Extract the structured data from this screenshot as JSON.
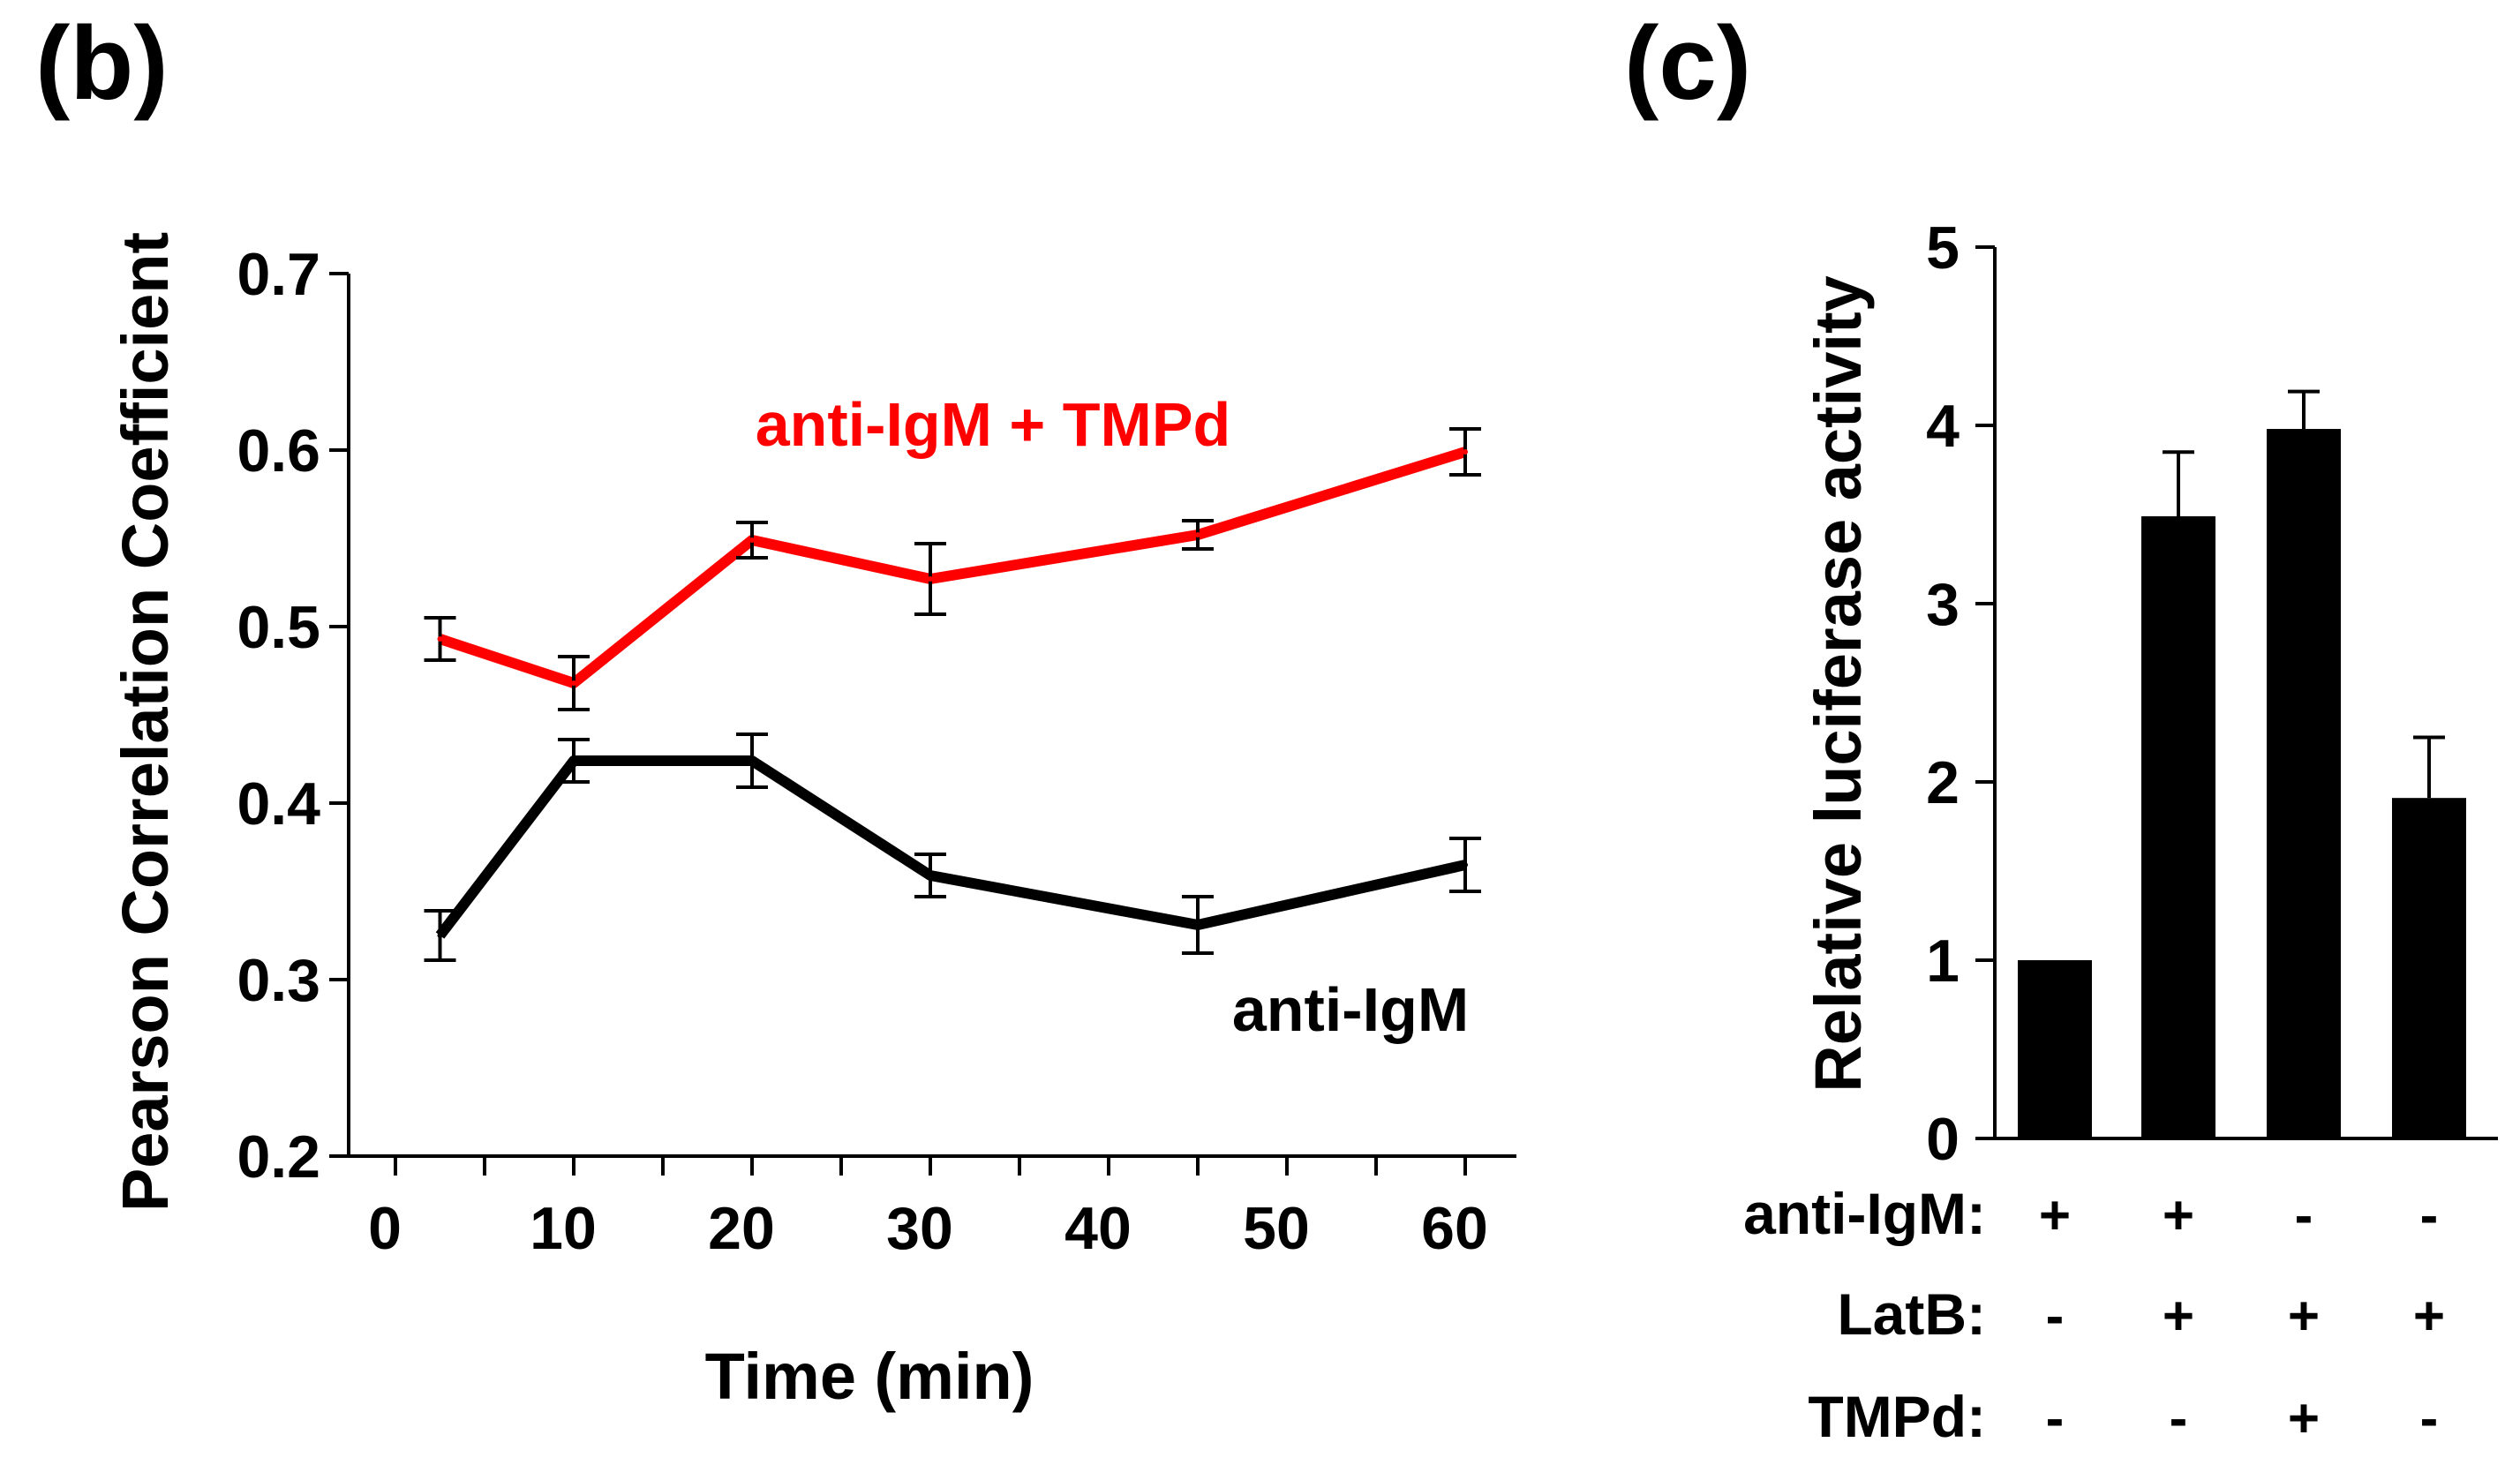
{
  "chart_data": [
    {
      "panel_label": "(b)",
      "type": "line",
      "title": "",
      "xlabel": "Time (min)",
      "ylabel": "Pearson Correlation Coefficient",
      "xlim": [
        0,
        60
      ],
      "ylim": [
        0.2,
        0.7
      ],
      "x_ticks": [
        "0",
        "10",
        "20",
        "30",
        "40",
        "50",
        "60"
      ],
      "y_ticks": [
        "0.2",
        "0.3",
        "0.4",
        "0.5",
        "0.6",
        "0.7"
      ],
      "grid": false,
      "series": [
        {
          "name": "anti-IgM + TMPd",
          "color": "#ff0000",
          "x": [
            2.5,
            10,
            20,
            30,
            45,
            60
          ],
          "y": [
            0.493,
            0.468,
            0.549,
            0.527,
            0.552,
            0.599
          ],
          "error": [
            0.012,
            0.015,
            0.01,
            0.02,
            0.008,
            0.013
          ]
        },
        {
          "name": "anti-IgM",
          "color": "#000000",
          "x": [
            2.5,
            10,
            20,
            30,
            45,
            60
          ],
          "y": [
            0.325,
            0.424,
            0.424,
            0.359,
            0.331,
            0.365
          ],
          "error": [
            0.014,
            0.012,
            0.015,
            0.012,
            0.016,
            0.015
          ]
        }
      ]
    },
    {
      "panel_label": "(c)",
      "type": "bar",
      "title": "",
      "xlabel": "",
      "ylabel": "Relative luciferase activity",
      "ylim": [
        0,
        5
      ],
      "y_ticks": [
        "0",
        "1",
        "2",
        "3",
        "4",
        "5"
      ],
      "grid": false,
      "bar_color": "#000000",
      "values": [
        1.0,
        3.49,
        3.98,
        1.91
      ],
      "error": [
        0,
        0.36,
        0.21,
        0.34
      ],
      "conditions": [
        {
          "name": "anti-IgM:",
          "signs": [
            "+",
            "+",
            "-",
            "-"
          ]
        },
        {
          "name": "LatB:",
          "signs": [
            "-",
            "+",
            "+",
            "+"
          ]
        },
        {
          "name": "TMPd:",
          "signs": [
            "-",
            "-",
            "+",
            "-"
          ]
        }
      ]
    }
  ]
}
